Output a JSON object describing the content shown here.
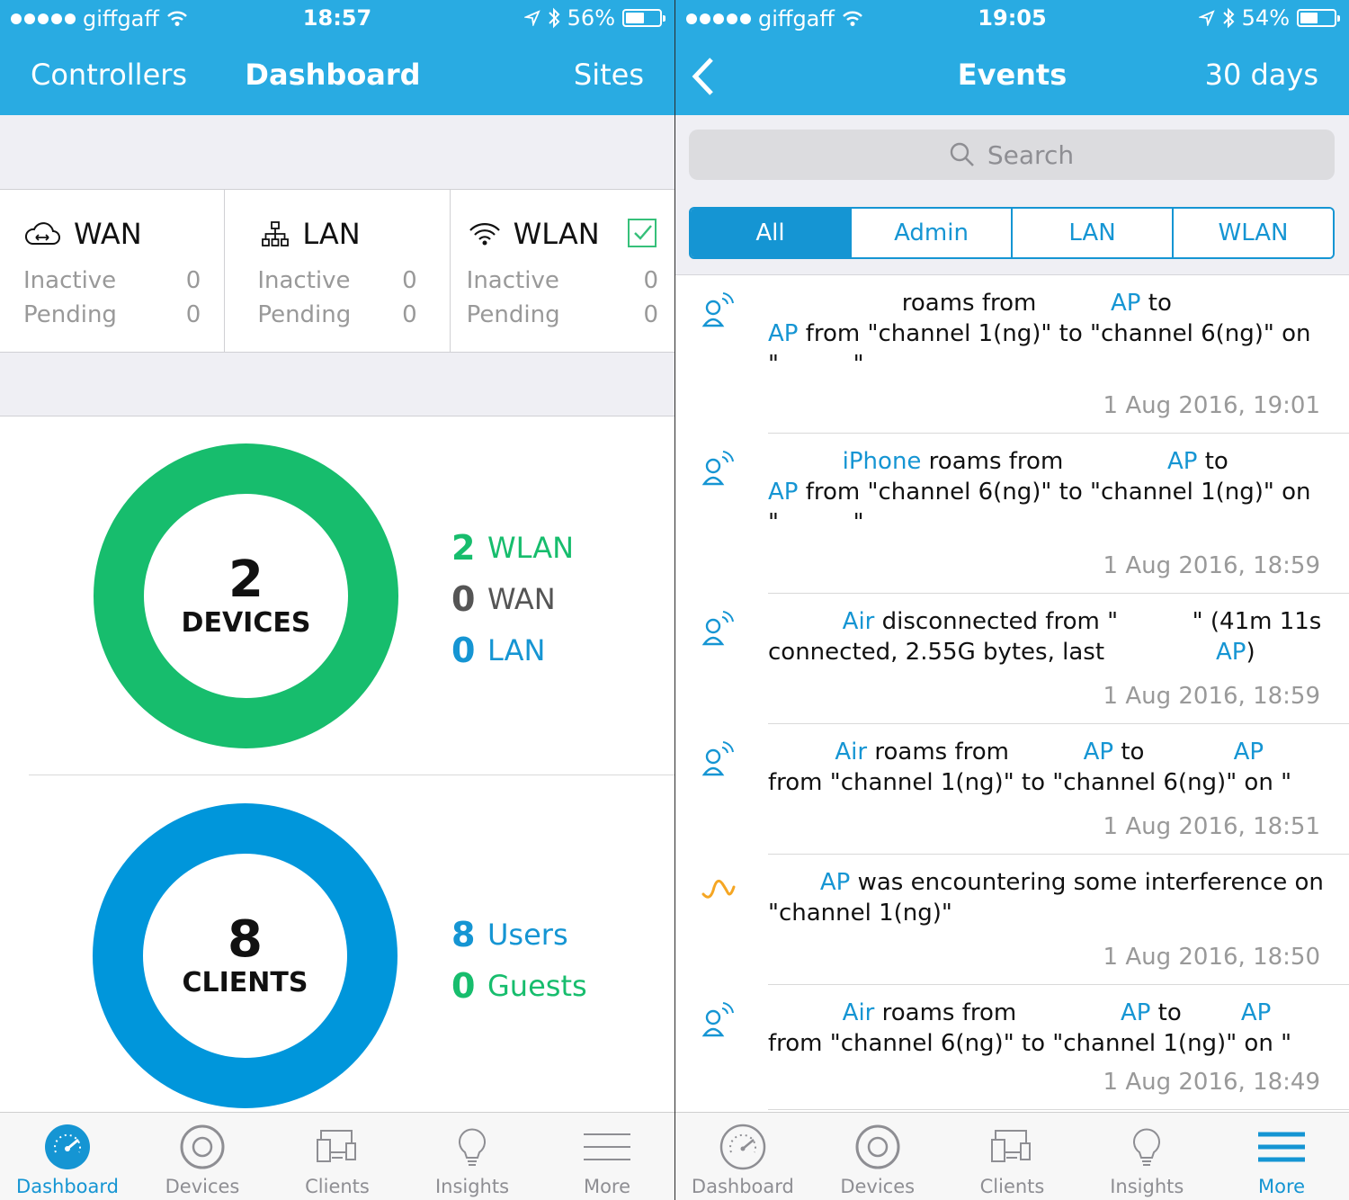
{
  "left": {
    "status": {
      "carrier": "giffgaff",
      "time": "18:57",
      "battery": "56%",
      "battery_level": 0.56
    },
    "nav": {
      "left": "Controllers",
      "title": "Dashboard",
      "right": "Sites"
    },
    "cards": [
      {
        "title": "WAN",
        "icon": "cloud-icon",
        "rows": [
          {
            "label": "Inactive",
            "value": "0"
          },
          {
            "label": "Pending",
            "value": "0"
          }
        ]
      },
      {
        "title": "LAN",
        "icon": "network-icon",
        "rows": [
          {
            "label": "Inactive",
            "value": "0"
          },
          {
            "label": "Pending",
            "value": "0"
          }
        ]
      },
      {
        "title": "WLAN",
        "icon": "wifi-icon",
        "rows": [
          {
            "label": "Inactive",
            "value": "0"
          },
          {
            "label": "Pending",
            "value": "0"
          }
        ]
      }
    ],
    "devices": {
      "count": "2",
      "label": "DEVICES",
      "breakdown": [
        {
          "n": "2",
          "label": "WLAN"
        },
        {
          "n": "0",
          "label": "WAN"
        },
        {
          "n": "0",
          "label": "LAN"
        }
      ]
    },
    "clients": {
      "count": "8",
      "label": "CLIENTS",
      "breakdown": [
        {
          "n": "8",
          "label": "Users"
        },
        {
          "n": "0",
          "label": "Guests"
        }
      ]
    },
    "tabs": [
      "Dashboard",
      "Devices",
      "Clients",
      "Insights",
      "More"
    ],
    "active_tab": "Dashboard"
  },
  "right": {
    "status": {
      "carrier": "giffgaff",
      "time": "19:05",
      "battery": "54%",
      "battery_level": 0.54
    },
    "nav": {
      "title": "Events",
      "right": "30 days"
    },
    "search": {
      "placeholder": "Search"
    },
    "filters": [
      "All",
      "Admin",
      "LAN",
      "WLAN"
    ],
    "active_filter": "All",
    "events": [
      {
        "icon": "wireless-client-icon",
        "lines": [
          [
            {
              "t": "                  roams from          "
            },
            {
              "t": "AP",
              "c": "b"
            },
            {
              "t": " to"
            }
          ],
          [
            {
              "t": "AP",
              "c": "b"
            },
            {
              "t": " from \"channel 1(ng)\" to \"channel 6(ng)\" on"
            }
          ],
          [
            {
              "t": "\"          \""
            }
          ]
        ],
        "date": "1 Aug 2016, 19:01"
      },
      {
        "icon": "wireless-client-icon",
        "lines": [
          [
            {
              "t": "          "
            },
            {
              "t": "iPhone",
              "c": "b"
            },
            {
              "t": " roams from              "
            },
            {
              "t": "AP",
              "c": "b"
            },
            {
              "t": " to"
            }
          ],
          [
            {
              "t": "AP",
              "c": "b"
            },
            {
              "t": " from \"channel 6(ng)\" to \"channel 1(ng)\" on"
            }
          ],
          [
            {
              "t": "\"          \""
            }
          ]
        ],
        "date": "1 Aug 2016, 18:59"
      },
      {
        "icon": "wireless-client-icon",
        "lines": [
          [
            {
              "t": "          "
            },
            {
              "t": "Air",
              "c": "b"
            },
            {
              "t": " disconnected from \"          \" (41m 11s"
            }
          ],
          [
            {
              "t": "connected, 2.55G bytes, last               "
            },
            {
              "t": "AP",
              "c": "b"
            },
            {
              "t": ")"
            }
          ]
        ],
        "date": "1 Aug 2016, 18:59"
      },
      {
        "icon": "wireless-client-icon",
        "lines": [
          [
            {
              "t": "         "
            },
            {
              "t": "Air",
              "c": "b"
            },
            {
              "t": " roams from          "
            },
            {
              "t": "AP",
              "c": "b"
            },
            {
              "t": " to            "
            },
            {
              "t": "AP",
              "c": "b"
            }
          ],
          [
            {
              "t": "from \"channel 1(ng)\" to \"channel 6(ng)\" on \"          \""
            }
          ]
        ],
        "date": "1 Aug 2016, 18:51"
      },
      {
        "icon": "interference-icon",
        "lines": [
          [
            {
              "t": "       "
            },
            {
              "t": "AP",
              "c": "b"
            },
            {
              "t": " was encountering some interference on"
            }
          ],
          [
            {
              "t": "\"channel 1(ng)\""
            }
          ]
        ],
        "date": "1 Aug 2016, 18:50"
      },
      {
        "icon": "wireless-client-icon",
        "lines": [
          [
            {
              "t": "          "
            },
            {
              "t": "Air",
              "c": "b"
            },
            {
              "t": " roams from              "
            },
            {
              "t": "AP",
              "c": "b"
            },
            {
              "t": " to        "
            },
            {
              "t": "AP",
              "c": "b"
            }
          ],
          [
            {
              "t": "from \"channel 6(ng)\" to \"channel 1(ng)\" on \"          \""
            }
          ]
        ],
        "date": "1 Aug 2016, 18:49"
      }
    ],
    "tabs": [
      "Dashboard",
      "Devices",
      "Clients",
      "Insights",
      "More"
    ],
    "active_tab": "More"
  },
  "colors": {
    "header": "#29abe2",
    "accent": "#1595d3",
    "green": "#17bd6d",
    "client_blue": "#0096db",
    "warning": "#f5a623"
  }
}
